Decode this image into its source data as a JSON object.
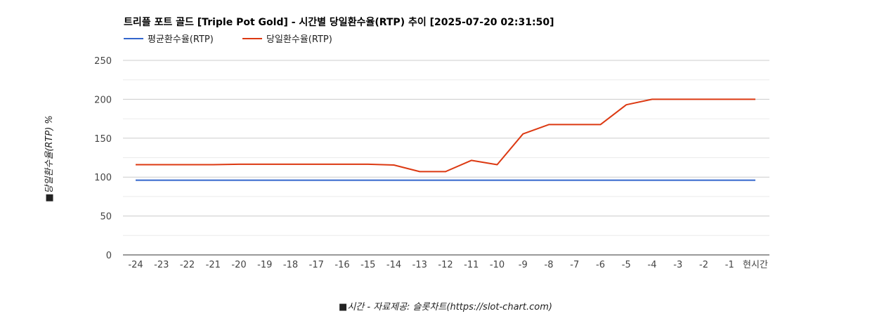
{
  "chart_data": {
    "type": "line",
    "title": "트리플 포트 골드 [Triple Pot Gold] - 시간별 당일환수율(RTP) 추이 [2025-07-20 02:31:50]",
    "xlabel": "■시간 - 자료제공: 슬롯차트(https://slot-chart.com)",
    "ylabel": "■당일환수율(RTP) %",
    "ylim": [
      0,
      250
    ],
    "yticks": [
      "0",
      "50",
      "100",
      "150",
      "200",
      "250"
    ],
    "categories": [
      "-24",
      "-23",
      "-22",
      "-21",
      "-20",
      "-19",
      "-18",
      "-17",
      "-16",
      "-15",
      "-14",
      "-13",
      "-12",
      "-11",
      "-10",
      "-9",
      "-8",
      "-7",
      "-6",
      "-5",
      "-4",
      "-3",
      "-2",
      "-1",
      "현시간"
    ],
    "legend_position": "top-left",
    "grid": true,
    "series": [
      {
        "name": "평균환수율(RTP)",
        "color": "#3366cc",
        "values": [
          96,
          96,
          96,
          96,
          96,
          96,
          96,
          96,
          96,
          96,
          96,
          96,
          96,
          96,
          96,
          96,
          96,
          96,
          96,
          96,
          96,
          96,
          96,
          96,
          96
        ]
      },
      {
        "name": "당일환수율(RTP)",
        "color": "#dc3912",
        "values": [
          116,
          116,
          116,
          116,
          116.5,
          116.5,
          116.5,
          116.5,
          116.5,
          116.5,
          115.5,
          107,
          107,
          121.5,
          116,
          155.5,
          167.5,
          167.5,
          167.5,
          193,
          200,
          200,
          200,
          200,
          200
        ]
      }
    ]
  }
}
